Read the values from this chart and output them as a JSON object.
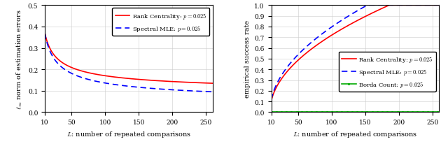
{
  "left": {
    "xlabel": "$L$: number of repeated comparisons",
    "ylabel": "$\\ell_\\infty$ norm of estimation errors",
    "xlim": [
      10,
      260
    ],
    "ylim": [
      0,
      0.5
    ],
    "xticks": [
      10,
      50,
      100,
      150,
      200,
      250
    ],
    "yticks": [
      0,
      0.1,
      0.2,
      0.3,
      0.4,
      0.5
    ],
    "rc_label": "Rank Centrality: $p = 0.025$",
    "smle_label": "Spectral MLE: $p = 0.025$",
    "rc_color": "#FF0000",
    "smle_color": "#0000FF"
  },
  "right": {
    "xlabel": "$L$: number of repeated comparisons",
    "ylabel": "empirical success rate",
    "xlim": [
      10,
      260
    ],
    "ylim": [
      0,
      1.0
    ],
    "xticks": [
      10,
      50,
      100,
      150,
      200,
      250
    ],
    "yticks": [
      0,
      0.1,
      0.2,
      0.3,
      0.4,
      0.5,
      0.6,
      0.7,
      0.8,
      0.9,
      1.0
    ],
    "rc_label": "Rank Centrality: $p = 0.025$",
    "smle_label": "Spectral MLE: $p = 0.025$",
    "borda_label": "Borda Count: $p = 0.025$",
    "rc_color": "#FF0000",
    "smle_color": "#0000FF",
    "borda_color": "#00AA00"
  }
}
